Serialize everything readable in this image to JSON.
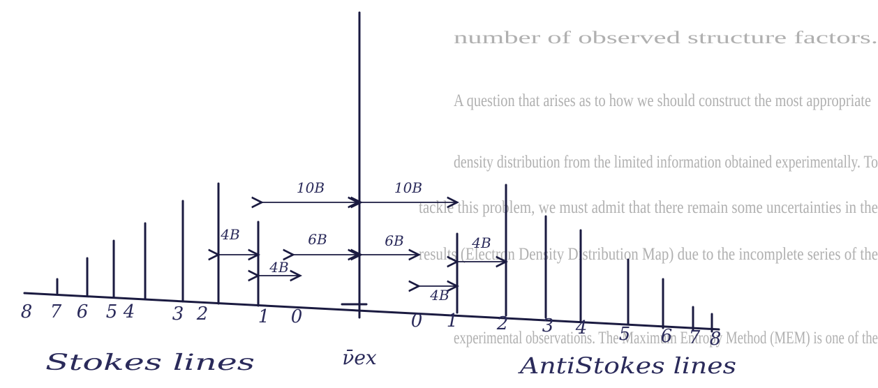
{
  "background_text": [
    "number of observed structure factors.",
    "A question that arises as to how we should construct the most appropriate",
    "density distribution from the limited information obtained experimentally. To",
    "tackle this problem, we must admit that there remain some uncertainties in the",
    "results (Electron Density Distribution Map) due to the incomplete series of the",
    "experimental observations. The Maximum Entropy Method (MEM) is one of the"
  ],
  "spacings": {
    "outer": "10B",
    "inner": "6B",
    "step": "4B"
  },
  "stokes_numbers": [
    "8",
    "7",
    "6",
    "5",
    "4",
    "3",
    "2",
    "1",
    "0"
  ],
  "antistokes_numbers": [
    "0",
    "1",
    "2",
    "3",
    "4",
    "5",
    "6",
    "7",
    "8"
  ],
  "center_label": "ν̄ex",
  "stokes_label": "Stokes lines",
  "antistokes_label": "AntiStokes lines"
}
